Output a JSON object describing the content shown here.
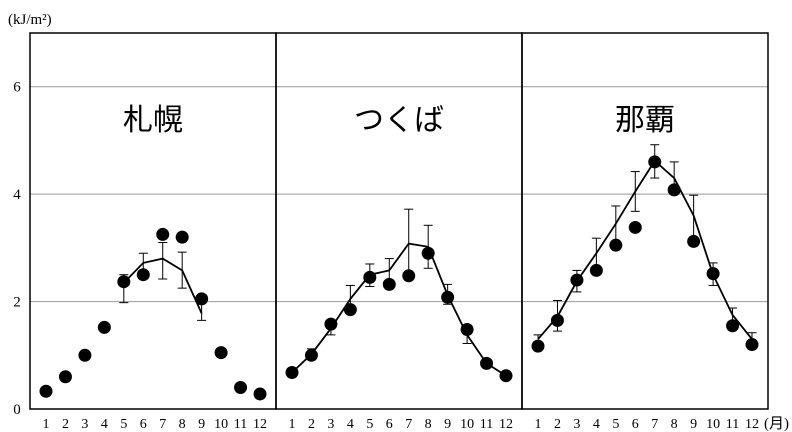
{
  "chart_data": {
    "type": "line",
    "y_unit_label": "(kJ/m²)",
    "x_unit_label": "(月)",
    "ylim": [
      0,
      7
    ],
    "yticks": [
      "0",
      "2",
      "4",
      "6"
    ],
    "x": [
      "1",
      "2",
      "3",
      "4",
      "5",
      "6",
      "7",
      "8",
      "9",
      "10",
      "11",
      "12"
    ],
    "grid": true,
    "legend": "none",
    "panels": [
      {
        "title": "札幌",
        "line": [
          null,
          null,
          null,
          null,
          2.35,
          2.72,
          2.8,
          2.58,
          1.78,
          null,
          null,
          null
        ],
        "error_high": [
          null,
          null,
          null,
          null,
          2.5,
          2.9,
          3.1,
          2.92,
          2.05,
          null,
          null,
          null
        ],
        "error_low": [
          null,
          null,
          null,
          null,
          1.98,
          2.5,
          2.42,
          2.25,
          1.65,
          null,
          null,
          null
        ],
        "points": [
          0.33,
          0.6,
          1.0,
          1.52,
          2.37,
          2.5,
          3.25,
          3.2,
          2.05,
          1.05,
          0.4,
          0.28
        ]
      },
      {
        "title": "つくば",
        "line": [
          0.68,
          1.02,
          1.5,
          2.05,
          2.5,
          2.58,
          3.08,
          3.02,
          2.12,
          1.38,
          0.85,
          0.62
        ],
        "error_high": [
          null,
          1.12,
          1.62,
          2.3,
          2.7,
          2.8,
          3.72,
          3.42,
          2.32,
          1.52,
          null,
          null
        ],
        "error_low": [
          null,
          0.95,
          1.38,
          1.82,
          2.28,
          2.35,
          2.48,
          2.62,
          1.95,
          1.22,
          null,
          null
        ],
        "points": [
          0.68,
          1.0,
          1.58,
          1.85,
          2.45,
          2.32,
          2.48,
          2.9,
          2.08,
          1.48,
          0.85,
          0.62
        ]
      },
      {
        "title": "那覇",
        "line": [
          1.3,
          1.72,
          2.38,
          2.9,
          3.45,
          4.05,
          4.62,
          4.3,
          3.6,
          2.5,
          1.75,
          1.3
        ],
        "error_high": [
          1.38,
          2.02,
          2.58,
          3.18,
          3.78,
          4.42,
          4.92,
          4.6,
          3.98,
          2.72,
          1.88,
          1.42
        ],
        "error_low": [
          null,
          1.45,
          2.18,
          2.62,
          3.12,
          3.68,
          4.3,
          4.0,
          3.2,
          2.3,
          1.62,
          1.18
        ],
        "points": [
          1.17,
          1.65,
          2.4,
          2.58,
          3.05,
          3.38,
          4.6,
          4.08,
          3.12,
          2.52,
          1.55,
          1.2
        ]
      }
    ]
  }
}
